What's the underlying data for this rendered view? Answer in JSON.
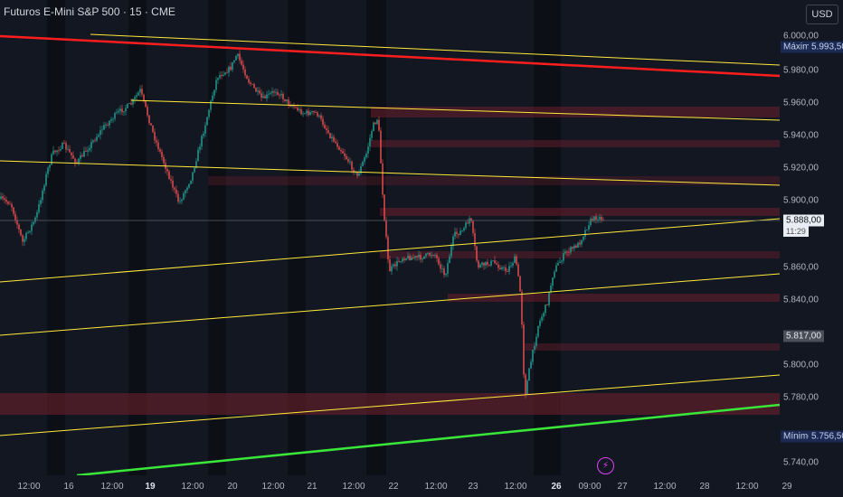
{
  "header": {
    "title": "Futuros E-Mini S&P 500 · 15 · CME",
    "currency_button": "USD"
  },
  "price_axis": {
    "ticks": [
      "6.000,00",
      "5.980,00",
      "5.960,00",
      "5.940,00",
      "5.920,00",
      "5.900,00",
      "5.860,00",
      "5.840,00",
      "5.800,00",
      "5.780,00",
      "5.740,00"
    ],
    "max_label": "Máximo",
    "max_value": "5.993,50",
    "current_price": "5.888,00",
    "countdown": "11:29",
    "level_label": "5.817,00",
    "min_label": "Mínimo",
    "min_value": "5.756,50"
  },
  "time_axis": {
    "labels": [
      {
        "text": "12:00",
        "bold": false
      },
      {
        "text": "16",
        "bold": false
      },
      {
        "text": "12:00",
        "bold": false
      },
      {
        "text": "19",
        "bold": true
      },
      {
        "text": "12:00",
        "bold": false
      },
      {
        "text": "20",
        "bold": false
      },
      {
        "text": "12:00",
        "bold": false
      },
      {
        "text": "21",
        "bold": false
      },
      {
        "text": "12:00",
        "bold": false
      },
      {
        "text": "22",
        "bold": false
      },
      {
        "text": "12:00",
        "bold": false
      },
      {
        "text": "23",
        "bold": false
      },
      {
        "text": "12:00",
        "bold": false
      },
      {
        "text": "26",
        "bold": true
      },
      {
        "text": "09:00",
        "bold": false
      },
      {
        "text": "27",
        "bold": false
      },
      {
        "text": "12:00",
        "bold": false
      },
      {
        "text": "28",
        "bold": false
      },
      {
        "text": "12:00",
        "bold": false
      },
      {
        "text": "29",
        "bold": false
      }
    ]
  },
  "colors": {
    "background": "#131722",
    "candle_up": "#26a69a",
    "candle_down": "#ef5350",
    "trendline_yellow": "#ffeb3b",
    "trendline_red": "#ff1e1e",
    "trendline_green": "#39e639",
    "zone": "#6b1f2c"
  },
  "icons": {
    "alert": "lightning-icon"
  }
}
